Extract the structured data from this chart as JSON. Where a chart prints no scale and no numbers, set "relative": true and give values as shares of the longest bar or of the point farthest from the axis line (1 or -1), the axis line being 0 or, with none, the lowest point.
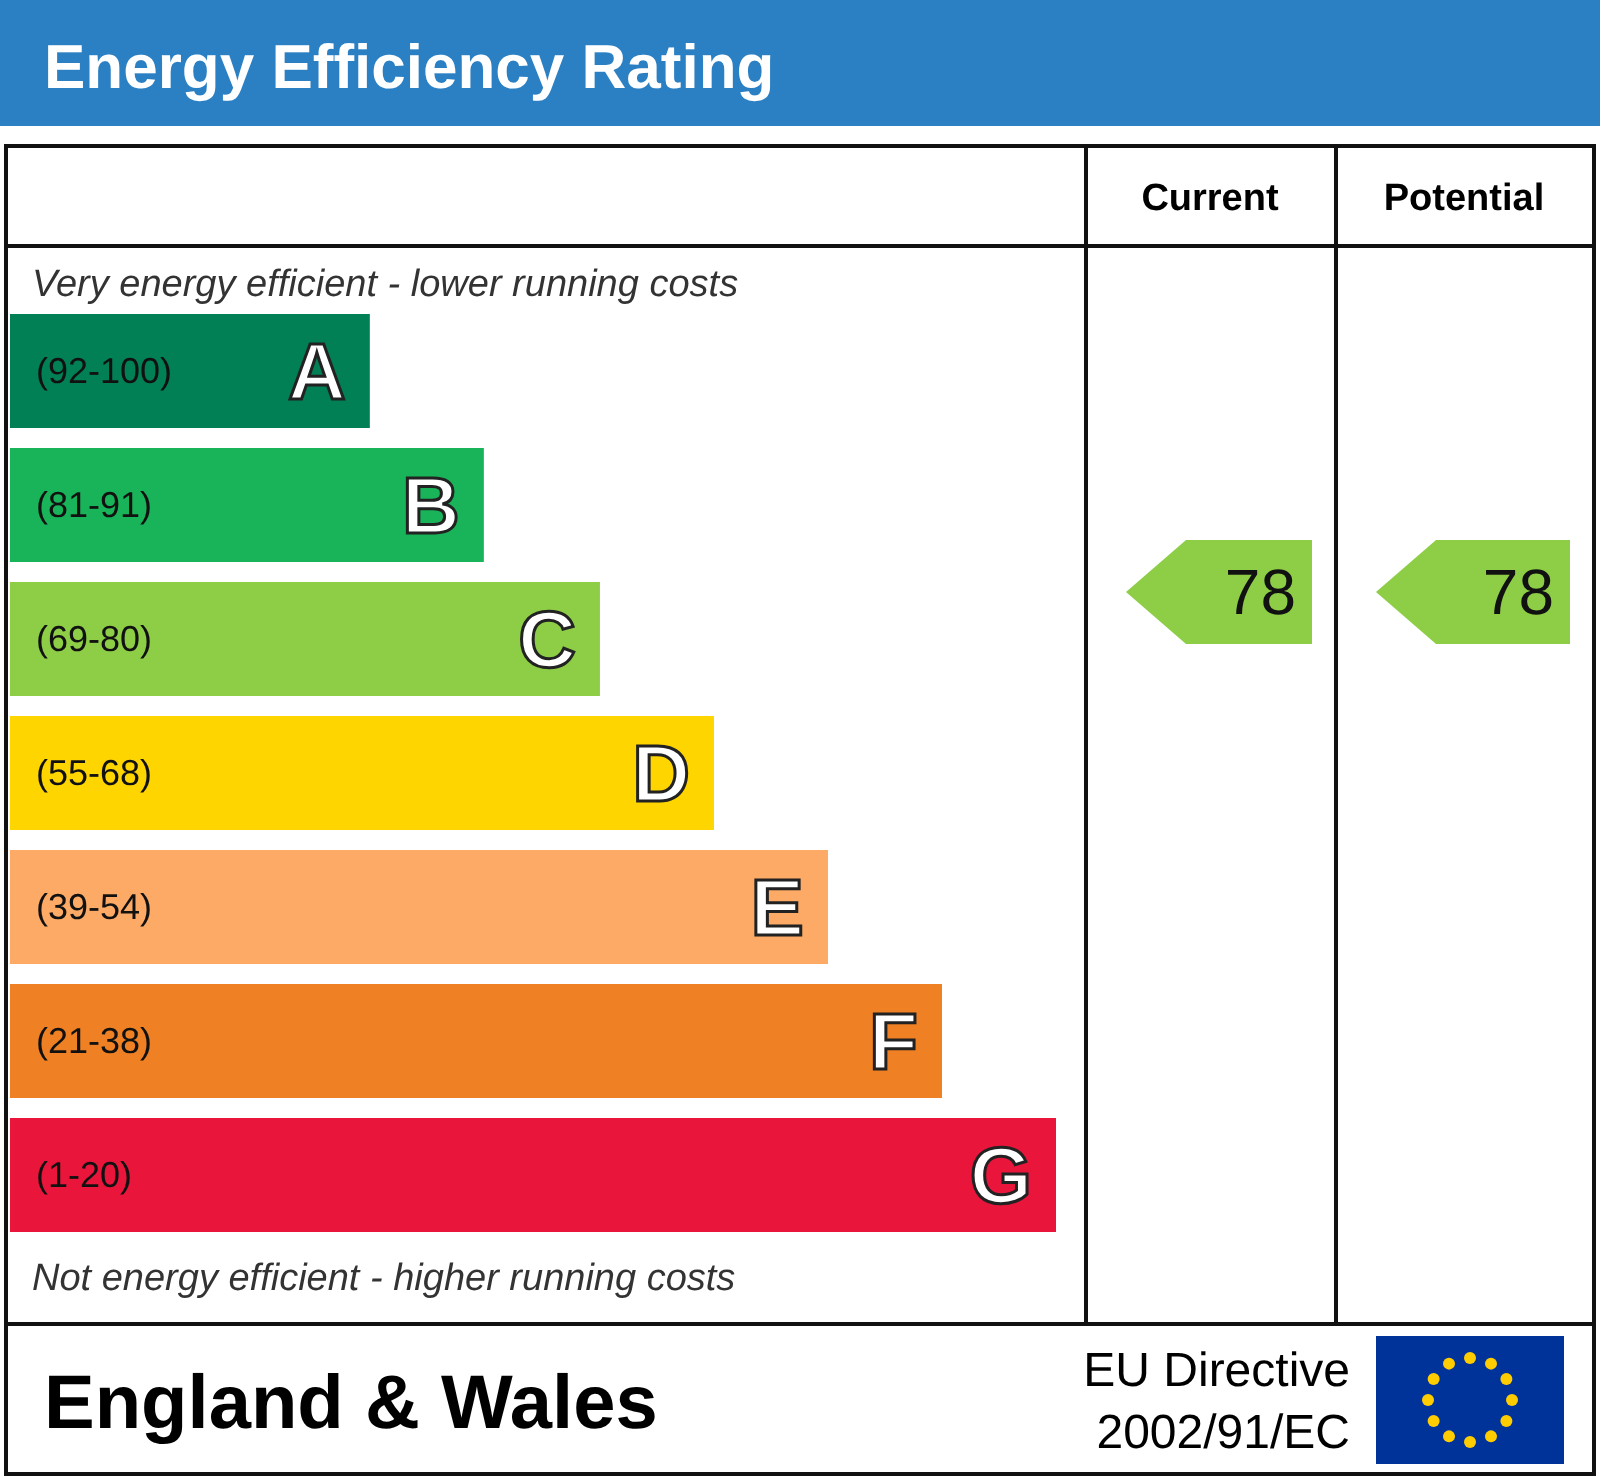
{
  "chart_data": {
    "type": "bar",
    "orientation": "horizontal",
    "relative": true,
    "title": "Energy Efficiency Rating",
    "categories": [
      "(92-100) A",
      "(81-91) B",
      "(69-80) C",
      "(55-68) D",
      "(39-54) E",
      "(21-38) F",
      "(1-20) G"
    ],
    "values": [
      0.344,
      0.453,
      0.564,
      0.673,
      0.782,
      0.891,
      1
    ],
    "colors": [
      "#008054",
      "#19b459",
      "#8dce46",
      "#ffd500",
      "#fcaa65",
      "#ef8023",
      "#e9153b"
    ],
    "annotations": [
      "Very energy efficient - lower running costs",
      "Not energy efficient - higher running costs",
      "Current",
      "Potential",
      "England & Wales",
      "EU Directive\n2002/91/EC",
      "78",
      "78"
    ]
  }
}
